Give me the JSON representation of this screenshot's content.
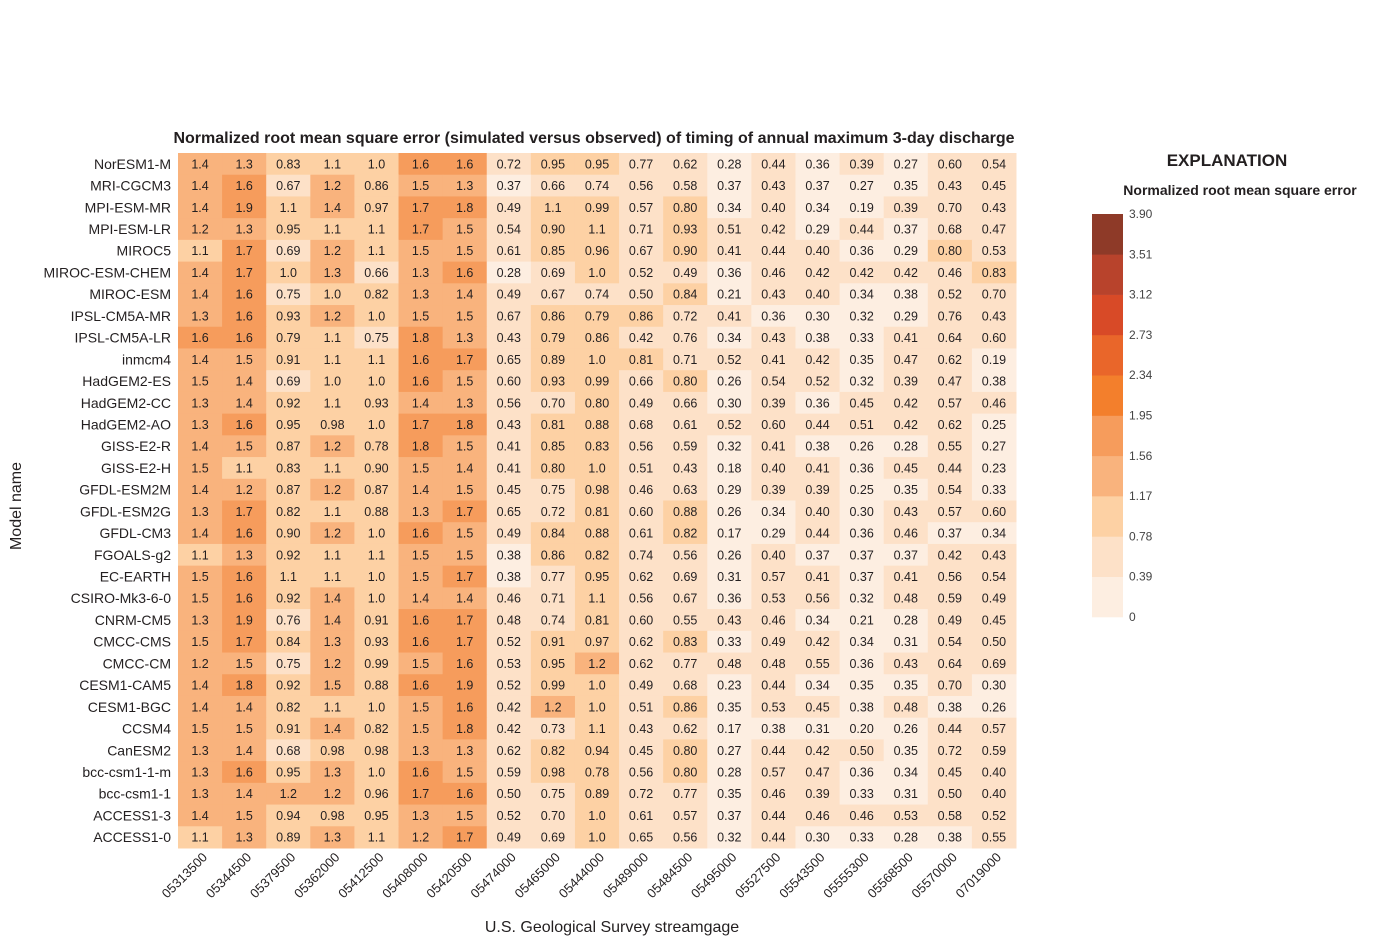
{
  "chart_data": {
    "type": "heatmap",
    "title": "Normalized root mean square error (simulated versus observed) of timing of annual maximum 3-day discharge",
    "xlabel": "U.S. Geological Survey streamgage",
    "ylabel": "Model name",
    "columns": [
      "05313500",
      "05344500",
      "05379500",
      "05362000",
      "05412500",
      "05408000",
      "05420500",
      "05474000",
      "05465000",
      "05444000",
      "05489000",
      "05484500",
      "05495000",
      "05527500",
      "05543500",
      "05555300",
      "05568500",
      "05570000",
      "07019000"
    ],
    "rows": [
      "NorESM1-M",
      "MRI-CGCM3",
      "MPI-ESM-MR",
      "MPI-ESM-LR",
      "MIROC5",
      "MIROC-ESM-CHEM",
      "MIROC-ESM",
      "IPSL-CM5A-MR",
      "IPSL-CM5A-LR",
      "inmcm4",
      "HadGEM2-ES",
      "HadGEM2-CC",
      "HadGEM2-AO",
      "GISS-E2-R",
      "GISS-E2-H",
      "GFDL-ESM2M",
      "GFDL-ESM2G",
      "GFDL-CM3",
      "FGOALS-g2",
      "EC-EARTH",
      "CSIRO-Mk3-6-0",
      "CNRM-CM5",
      "CMCC-CMS",
      "CMCC-CM",
      "CESM1-CAM5",
      "CESM1-BGC",
      "CCSM4",
      "CanESM2",
      "bcc-csm1-1-m",
      "bcc-csm1-1",
      "ACCESS1-3",
      "ACCESS1-0"
    ],
    "values": [
      [
        1.4,
        1.3,
        0.83,
        1.1,
        1.0,
        1.6,
        1.6,
        0.72,
        0.95,
        0.95,
        0.77,
        0.62,
        0.28,
        0.44,
        0.36,
        0.39,
        0.27,
        0.6,
        0.54
      ],
      [
        1.4,
        1.6,
        0.67,
        1.2,
        0.86,
        1.5,
        1.3,
        0.37,
        0.66,
        0.74,
        0.56,
        0.58,
        0.37,
        0.43,
        0.37,
        0.27,
        0.35,
        0.43,
        0.45
      ],
      [
        1.4,
        1.9,
        1.1,
        1.4,
        0.97,
        1.7,
        1.8,
        0.49,
        1.1,
        0.99,
        0.57,
        0.8,
        0.34,
        0.4,
        0.34,
        0.19,
        0.39,
        0.7,
        0.43
      ],
      [
        1.2,
        1.3,
        0.95,
        1.1,
        1.1,
        1.7,
        1.5,
        0.54,
        0.9,
        1.1,
        0.71,
        0.93,
        0.51,
        0.42,
        0.29,
        0.44,
        0.37,
        0.68,
        0.47
      ],
      [
        1.1,
        1.7,
        0.69,
        1.2,
        1.1,
        1.5,
        1.5,
        0.61,
        0.85,
        0.96,
        0.67,
        0.9,
        0.41,
        0.44,
        0.4,
        0.36,
        0.29,
        0.8,
        0.53
      ],
      [
        1.4,
        1.7,
        1.0,
        1.3,
        0.66,
        1.3,
        1.6,
        0.28,
        0.69,
        1.0,
        0.52,
        0.49,
        0.36,
        0.46,
        0.42,
        0.42,
        0.42,
        0.46,
        0.83
      ],
      [
        1.4,
        1.6,
        0.75,
        1.0,
        0.82,
        1.3,
        1.4,
        0.49,
        0.67,
        0.74,
        0.5,
        0.84,
        0.21,
        0.43,
        0.4,
        0.34,
        0.38,
        0.52,
        0.7
      ],
      [
        1.3,
        1.6,
        0.93,
        1.2,
        1.0,
        1.5,
        1.5,
        0.67,
        0.86,
        0.79,
        0.86,
        0.72,
        0.41,
        0.36,
        0.3,
        0.32,
        0.29,
        0.76,
        0.43
      ],
      [
        1.6,
        1.6,
        0.79,
        1.1,
        0.75,
        1.8,
        1.3,
        0.43,
        0.79,
        0.86,
        0.42,
        0.76,
        0.34,
        0.43,
        0.38,
        0.33,
        0.41,
        0.64,
        0.6
      ],
      [
        1.4,
        1.5,
        0.91,
        1.1,
        1.1,
        1.6,
        1.7,
        0.65,
        0.89,
        1.0,
        0.81,
        0.71,
        0.52,
        0.41,
        0.42,
        0.35,
        0.47,
        0.62,
        0.19
      ],
      [
        1.5,
        1.4,
        0.69,
        1.0,
        1.0,
        1.6,
        1.5,
        0.6,
        0.93,
        0.99,
        0.66,
        0.8,
        0.26,
        0.54,
        0.52,
        0.32,
        0.39,
        0.47,
        0.38
      ],
      [
        1.3,
        1.4,
        0.92,
        1.1,
        0.93,
        1.4,
        1.3,
        0.56,
        0.7,
        0.8,
        0.49,
        0.66,
        0.3,
        0.39,
        0.36,
        0.45,
        0.42,
        0.57,
        0.46
      ],
      [
        1.3,
        1.6,
        0.95,
        0.98,
        1.0,
        1.7,
        1.8,
        0.43,
        0.81,
        0.88,
        0.68,
        0.61,
        0.52,
        0.6,
        0.44,
        0.51,
        0.42,
        0.62,
        0.25
      ],
      [
        1.4,
        1.5,
        0.87,
        1.2,
        0.78,
        1.8,
        1.5,
        0.41,
        0.85,
        0.83,
        0.56,
        0.59,
        0.32,
        0.41,
        0.38,
        0.26,
        0.28,
        0.55,
        0.27
      ],
      [
        1.5,
        1.1,
        0.83,
        1.1,
        0.9,
        1.5,
        1.4,
        0.41,
        0.8,
        1.0,
        0.51,
        0.43,
        0.18,
        0.4,
        0.41,
        0.36,
        0.45,
        0.44,
        0.23
      ],
      [
        1.4,
        1.2,
        0.87,
        1.2,
        0.87,
        1.4,
        1.5,
        0.45,
        0.75,
        0.98,
        0.46,
        0.63,
        0.29,
        0.39,
        0.39,
        0.25,
        0.35,
        0.54,
        0.33
      ],
      [
        1.3,
        1.7,
        0.82,
        1.1,
        0.88,
        1.3,
        1.7,
        0.65,
        0.72,
        0.81,
        0.6,
        0.88,
        0.26,
        0.34,
        0.4,
        0.3,
        0.43,
        0.57,
        0.6
      ],
      [
        1.4,
        1.6,
        0.9,
        1.2,
        1.0,
        1.6,
        1.5,
        0.49,
        0.84,
        0.88,
        0.61,
        0.82,
        0.17,
        0.29,
        0.44,
        0.36,
        0.46,
        0.37,
        0.34
      ],
      [
        1.1,
        1.3,
        0.92,
        1.1,
        1.1,
        1.5,
        1.5,
        0.38,
        0.86,
        0.82,
        0.74,
        0.56,
        0.26,
        0.4,
        0.37,
        0.37,
        0.37,
        0.42,
        0.43
      ],
      [
        1.5,
        1.6,
        1.1,
        1.1,
        1.0,
        1.5,
        1.7,
        0.38,
        0.77,
        0.95,
        0.62,
        0.69,
        0.31,
        0.57,
        0.41,
        0.37,
        0.41,
        0.56,
        0.54
      ],
      [
        1.5,
        1.6,
        0.92,
        1.4,
        1.0,
        1.4,
        1.4,
        0.46,
        0.71,
        1.1,
        0.56,
        0.67,
        0.36,
        0.53,
        0.56,
        0.32,
        0.48,
        0.59,
        0.49
      ],
      [
        1.3,
        1.9,
        0.76,
        1.4,
        0.91,
        1.6,
        1.7,
        0.48,
        0.74,
        0.81,
        0.6,
        0.55,
        0.43,
        0.46,
        0.34,
        0.21,
        0.28,
        0.49,
        0.45
      ],
      [
        1.5,
        1.7,
        0.84,
        1.3,
        0.93,
        1.6,
        1.7,
        0.52,
        0.91,
        0.97,
        0.62,
        0.83,
        0.33,
        0.49,
        0.42,
        0.34,
        0.31,
        0.54,
        0.5
      ],
      [
        1.2,
        1.5,
        0.75,
        1.2,
        0.99,
        1.5,
        1.6,
        0.53,
        0.95,
        1.2,
        0.62,
        0.77,
        0.48,
        0.48,
        0.55,
        0.36,
        0.43,
        0.64,
        0.69
      ],
      [
        1.4,
        1.8,
        0.92,
        1.5,
        0.88,
        1.6,
        1.9,
        0.52,
        0.99,
        1.0,
        0.49,
        0.68,
        0.23,
        0.44,
        0.34,
        0.35,
        0.35,
        0.7,
        0.3
      ],
      [
        1.4,
        1.4,
        0.82,
        1.1,
        1.0,
        1.5,
        1.6,
        0.42,
        1.2,
        1.0,
        0.51,
        0.86,
        0.35,
        0.53,
        0.45,
        0.38,
        0.48,
        0.38,
        0.26
      ],
      [
        1.5,
        1.5,
        0.91,
        1.4,
        0.82,
        1.5,
        1.8,
        0.42,
        0.73,
        1.1,
        0.43,
        0.62,
        0.17,
        0.38,
        0.31,
        0.2,
        0.26,
        0.44,
        0.57
      ],
      [
        1.3,
        1.4,
        0.68,
        0.98,
        0.98,
        1.3,
        1.3,
        0.62,
        0.82,
        0.94,
        0.45,
        0.8,
        0.27,
        0.44,
        0.42,
        0.5,
        0.35,
        0.72,
        0.59
      ],
      [
        1.3,
        1.6,
        0.95,
        1.3,
        1.0,
        1.6,
        1.5,
        0.59,
        0.98,
        0.78,
        0.56,
        0.8,
        0.28,
        0.57,
        0.47,
        0.36,
        0.34,
        0.45,
        0.4
      ],
      [
        1.3,
        1.4,
        1.2,
        1.2,
        0.96,
        1.7,
        1.6,
        0.5,
        0.75,
        0.89,
        0.72,
        0.77,
        0.35,
        0.46,
        0.39,
        0.33,
        0.31,
        0.5,
        0.4
      ],
      [
        1.4,
        1.5,
        0.94,
        0.98,
        0.95,
        1.3,
        1.5,
        0.52,
        0.7,
        1.0,
        0.61,
        0.57,
        0.37,
        0.44,
        0.46,
        0.46,
        0.53,
        0.58,
        0.52
      ],
      [
        1.1,
        1.3,
        0.89,
        1.3,
        1.1,
        1.2,
        1.7,
        0.49,
        0.69,
        1.0,
        0.65,
        0.56,
        0.32,
        0.44,
        0.3,
        0.33,
        0.28,
        0.38,
        0.55
      ]
    ],
    "legend": {
      "title": "EXPLANATION",
      "subtitle": "Normalized root mean square error",
      "breaks": [
        "0",
        "0.39",
        "0.78",
        "1.17",
        "1.56",
        "1.95",
        "2.34",
        "2.73",
        "3.12",
        "3.51",
        "3.90"
      ],
      "colors": [
        "#fdeee1",
        "#fde1c8",
        "#fdd1a4",
        "#f9b37d",
        "#f69c5c",
        "#f37f2c",
        "#e9662a",
        "#d84a27",
        "#b8432c",
        "#8e3a28"
      ],
      "placement": "right"
    },
    "value_range": [
      0,
      3.9
    ]
  }
}
